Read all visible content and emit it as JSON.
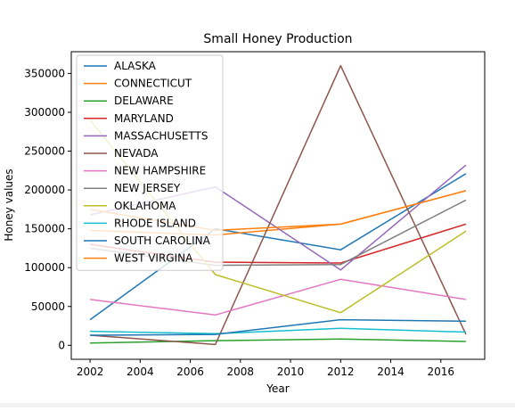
{
  "chart_data": {
    "type": "line",
    "title": "Small Honey Production",
    "xlabel": "Year",
    "ylabel": "Honey values",
    "x": [
      2002,
      2007,
      2012,
      2017
    ],
    "xlim": [
      2001.25,
      2017.75
    ],
    "ylim": [
      -18000,
      378000
    ],
    "xticks": [
      2002,
      2004,
      2006,
      2008,
      2010,
      2012,
      2014,
      2016
    ],
    "yticks": [
      0,
      50000,
      100000,
      150000,
      200000,
      250000,
      300000,
      350000
    ],
    "legend_position": "upper-left",
    "grid": false,
    "series": [
      {
        "name": "ALASKA",
        "color": "#1f77b4",
        "values": [
          33000,
          150000,
          123000,
          221000
        ]
      },
      {
        "name": "CONNECTICUT",
        "color": "#ff7f0e",
        "values": [
          148000,
          142000,
          156000,
          199000
        ]
      },
      {
        "name": "DELAWARE",
        "color": "#2ca02c",
        "values": [
          3000,
          6000,
          8000,
          5000
        ]
      },
      {
        "name": "MARYLAND",
        "color": "#d62728",
        "values": [
          130000,
          107000,
          106000,
          156000
        ]
      },
      {
        "name": "MASSACHUSETTS",
        "color": "#9467bd",
        "values": [
          168000,
          204000,
          97000,
          232000
        ]
      },
      {
        "name": "NEVADA",
        "color": "#8c564b",
        "values": [
          13000,
          1000,
          360000,
          14000
        ]
      },
      {
        "name": "NEW HAMPSHIRE",
        "color": "#e377c2",
        "values": [
          59000,
          39000,
          85000,
          59000
        ]
      },
      {
        "name": "NEW JERSEY",
        "color": "#7f7f7f",
        "values": [
          125000,
          103000,
          104000,
          187000
        ]
      },
      {
        "name": "OKLAHOMA",
        "color": "#bcbd22",
        "values": [
          290000,
          91000,
          42000,
          147000
        ]
      },
      {
        "name": "RHODE ISLAND",
        "color": "#17becf",
        "values": [
          18000,
          15000,
          22000,
          17000
        ]
      },
      {
        "name": "SOUTH CAROLINA",
        "color": "#1f77b4",
        "values": [
          13000,
          14000,
          33000,
          31000
        ]
      },
      {
        "name": "WEST VIRGINA",
        "color": "#ff7f0e",
        "values": [
          175000,
          148000,
          156000,
          199000
        ]
      }
    ]
  }
}
